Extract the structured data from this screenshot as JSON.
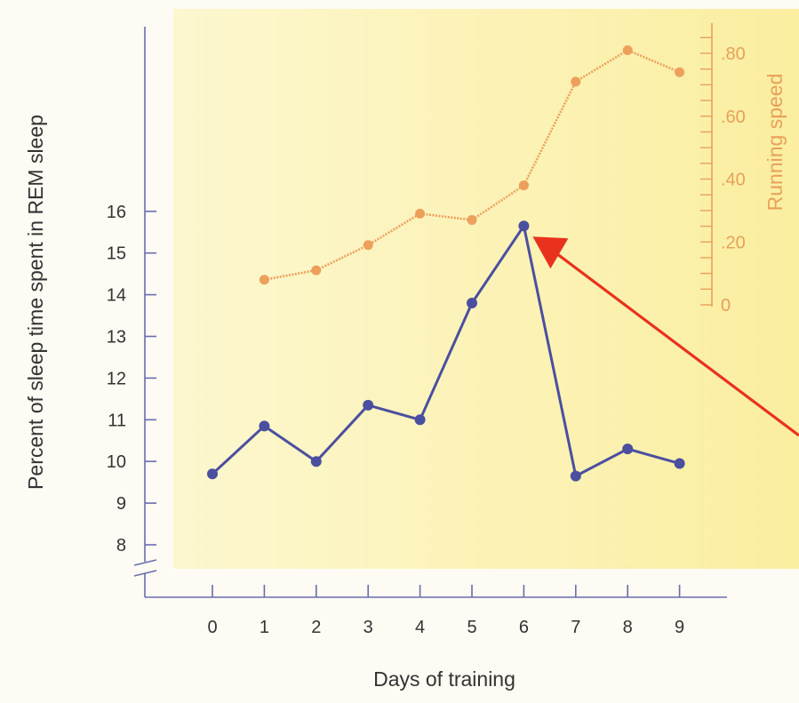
{
  "chart_data": {
    "type": "line",
    "xlabel": "Days of training",
    "ylabel": "Percent of sleep time spent in REM sleep",
    "y2label": "Running speed",
    "x": [
      0,
      1,
      2,
      3,
      4,
      5,
      6,
      7,
      8,
      9
    ],
    "x_ticks": [
      "0",
      "1",
      "2",
      "3",
      "4",
      "5",
      "6",
      "7",
      "8",
      "9"
    ],
    "ylim": [
      8,
      16
    ],
    "y_ticks": [
      "8",
      "9",
      "10",
      "11",
      "12",
      "13",
      "14",
      "15",
      "16"
    ],
    "y2lim": [
      0,
      0.8
    ],
    "y2_ticks": [
      "0",
      ".20",
      ".40",
      ".60",
      ".80"
    ],
    "grid": false,
    "axis_break": true,
    "series": [
      {
        "axis": "left",
        "color": "#4b4f9f",
        "x": [
          0,
          1,
          2,
          3,
          4,
          5,
          6,
          7,
          8,
          9
        ],
        "values": [
          9.7,
          10.85,
          10.0,
          11.35,
          11.0,
          13.8,
          15.65,
          9.65,
          10.3,
          9.95
        ]
      },
      {
        "axis": "right",
        "color": "#eda05c",
        "x": [
          1,
          2,
          3,
          4,
          5,
          6,
          7,
          8,
          9
        ],
        "values": [
          0.08,
          0.11,
          0.19,
          0.29,
          0.27,
          0.38,
          0.71,
          0.81,
          0.74
        ]
      }
    ],
    "annotations": [
      {
        "type": "arrow",
        "color": "#e8321e",
        "points_to": {
          "series": 0,
          "x": 6
        }
      }
    ]
  },
  "colors": {
    "background": "#fdfbf3",
    "panel": "#fbf3b2",
    "axis": "#6a6cb0",
    "right_axis": "#e8a05a",
    "arrow": "#e8321e"
  }
}
